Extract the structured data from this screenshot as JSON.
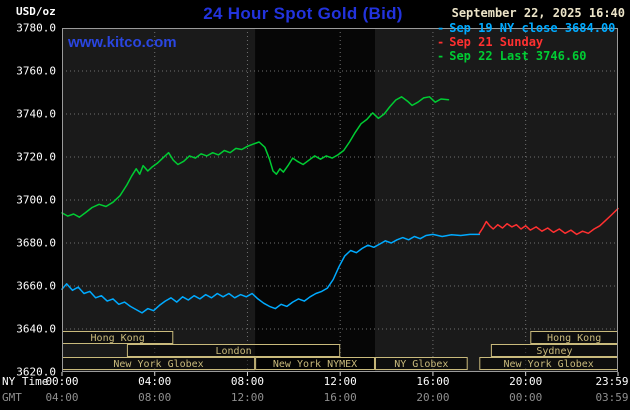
{
  "header": {
    "units": "USD/oz",
    "title": "24 Hour Spot Gold (Bid)",
    "datetime": "September 22, 2025 16:40",
    "watermark": "www.kitco.com"
  },
  "legend": [
    {
      "dash": "-",
      "label": "Sep 19 NY close 3684.00",
      "color": "#00aaff"
    },
    {
      "dash": "-",
      "label": "Sep 21 Sunday",
      "color": "#ff3030"
    },
    {
      "dash": "-",
      "label": "Sep 22 Last 3746.60",
      "color": "#00cc33"
    }
  ],
  "axes": {
    "ny_label": "NY Time",
    "gmt_label": "GMT",
    "x_ticks": [
      {
        "hour": 0,
        "ny": "00:00",
        "gmt": "04:00"
      },
      {
        "hour": 4,
        "ny": "04:00",
        "gmt": "08:00"
      },
      {
        "hour": 8,
        "ny": "08:00",
        "gmt": "12:00"
      },
      {
        "hour": 12,
        "ny": "12:00",
        "gmt": "16:00"
      },
      {
        "hour": 16,
        "ny": "16:00",
        "gmt": "20:00"
      },
      {
        "hour": 20,
        "ny": "20:00",
        "gmt": "00:00"
      },
      {
        "hour": 23.983,
        "ny": "23:59",
        "gmt": "03:59"
      }
    ],
    "y_ticks": [
      {
        "value": 3780,
        "label": "3780.0"
      },
      {
        "value": 3760,
        "label": "3760.0"
      },
      {
        "value": 3740,
        "label": "3740.0"
      },
      {
        "value": 3720,
        "label": "3720.0"
      },
      {
        "value": 3700,
        "label": "3700.0"
      },
      {
        "value": 3680,
        "label": "3680.0"
      },
      {
        "value": 3660,
        "label": "3660.0"
      },
      {
        "value": 3640,
        "label": "3640.0"
      },
      {
        "value": 3620,
        "label": "3620.0"
      }
    ]
  },
  "plot": {
    "bg": "#1a1a1a",
    "band": {
      "start_hour": 8.33,
      "end_hour": 13.5,
      "color": "#060606"
    },
    "grid_color": "#707070",
    "border_color": "#9a9a9a",
    "tick_color": "#dddddd",
    "session_color": "#c9ba7c",
    "sessions": [
      {
        "label": "Hong Kong",
        "row": 0,
        "start": 0,
        "end": 4.8
      },
      {
        "label": "Hong Kong",
        "row": 0,
        "start": 20.2,
        "end": 23.983
      },
      {
        "label": "London",
        "row": 1,
        "start": 2.8,
        "end": 12.0
      },
      {
        "label": "Sydney",
        "row": 1,
        "start": 18.5,
        "end": 23.983
      },
      {
        "label": "New York Globex",
        "row": 2,
        "start": 0,
        "end": 8.33
      },
      {
        "label": "New York NYMEX",
        "row": 2,
        "start": 8.33,
        "end": 13.5
      },
      {
        "label": "NY Globex",
        "row": 2,
        "start": 13.5,
        "end": 17.5
      },
      {
        "label": "New York Globex",
        "row": 2,
        "start": 18.0,
        "end": 23.983
      }
    ]
  },
  "chart_data": {
    "type": "line",
    "title": "24 Hour Spot Gold (Bid)",
    "ylabel": "USD/oz",
    "ylim": [
      3620,
      3780
    ],
    "xlim_hours": [
      0,
      23.983
    ],
    "x_axis": "NY time (hours, 00:00-23:59)",
    "legend_position": "top-right",
    "grid": true,
    "series": [
      {
        "name": "Sep 19 NY close",
        "color": "#00aaff",
        "close": 3684.0,
        "points": [
          [
            0,
            3658.5
          ],
          [
            0.2,
            3661
          ],
          [
            0.45,
            3658
          ],
          [
            0.7,
            3659.5
          ],
          [
            0.95,
            3656.5
          ],
          [
            1.2,
            3657.5
          ],
          [
            1.45,
            3654.5
          ],
          [
            1.7,
            3655.5
          ],
          [
            1.95,
            3653
          ],
          [
            2.2,
            3654
          ],
          [
            2.45,
            3651.5
          ],
          [
            2.7,
            3652.5
          ],
          [
            2.95,
            3650.5
          ],
          [
            3.2,
            3649
          ],
          [
            3.45,
            3647.5
          ],
          [
            3.7,
            3649.5
          ],
          [
            3.95,
            3648.5
          ],
          [
            4.2,
            3651
          ],
          [
            4.45,
            3653
          ],
          [
            4.7,
            3654.5
          ],
          [
            4.95,
            3652.5
          ],
          [
            5.2,
            3655
          ],
          [
            5.45,
            3653.5
          ],
          [
            5.7,
            3655.5
          ],
          [
            5.95,
            3654
          ],
          [
            6.2,
            3656
          ],
          [
            6.45,
            3654.5
          ],
          [
            6.7,
            3656.5
          ],
          [
            6.95,
            3655
          ],
          [
            7.2,
            3656.5
          ],
          [
            7.45,
            3654.5
          ],
          [
            7.7,
            3656
          ],
          [
            7.95,
            3655
          ],
          [
            8.2,
            3656.5
          ],
          [
            8.45,
            3654
          ],
          [
            8.7,
            3652
          ],
          [
            8.95,
            3650.5
          ],
          [
            9.2,
            3649.5
          ],
          [
            9.45,
            3651.5
          ],
          [
            9.7,
            3650.5
          ],
          [
            9.95,
            3652.5
          ],
          [
            10.2,
            3654
          ],
          [
            10.45,
            3653
          ],
          [
            10.7,
            3655
          ],
          [
            10.95,
            3656.5
          ],
          [
            11.2,
            3657.5
          ],
          [
            11.45,
            3659
          ],
          [
            11.7,
            3663
          ],
          [
            11.95,
            3669
          ],
          [
            12.2,
            3674
          ],
          [
            12.45,
            3676.5
          ],
          [
            12.7,
            3675.5
          ],
          [
            12.95,
            3677.5
          ],
          [
            13.2,
            3679
          ],
          [
            13.45,
            3678
          ],
          [
            13.7,
            3679.5
          ],
          [
            13.95,
            3681
          ],
          [
            14.2,
            3680
          ],
          [
            14.45,
            3681.5
          ],
          [
            14.7,
            3682.5
          ],
          [
            14.95,
            3681.5
          ],
          [
            15.2,
            3683
          ],
          [
            15.45,
            3682
          ],
          [
            15.7,
            3683.5
          ],
          [
            16,
            3684
          ],
          [
            16.4,
            3683
          ],
          [
            16.8,
            3683.8
          ],
          [
            17.2,
            3683.5
          ],
          [
            17.6,
            3684
          ],
          [
            18,
            3684
          ]
        ]
      },
      {
        "name": "Sep 21 Sunday",
        "color": "#ff3030",
        "points": [
          [
            18,
            3684.5
          ],
          [
            18.15,
            3687
          ],
          [
            18.3,
            3690
          ],
          [
            18.45,
            3688
          ],
          [
            18.6,
            3686.5
          ],
          [
            18.8,
            3688.5
          ],
          [
            19,
            3687
          ],
          [
            19.2,
            3689
          ],
          [
            19.4,
            3687.5
          ],
          [
            19.6,
            3688.5
          ],
          [
            19.8,
            3686.5
          ],
          [
            20,
            3688
          ],
          [
            20.2,
            3686
          ],
          [
            20.45,
            3687.5
          ],
          [
            20.7,
            3685.5
          ],
          [
            20.95,
            3687
          ],
          [
            21.2,
            3685
          ],
          [
            21.45,
            3686.5
          ],
          [
            21.7,
            3684.5
          ],
          [
            21.95,
            3686
          ],
          [
            22.2,
            3684
          ],
          [
            22.45,
            3685.5
          ],
          [
            22.7,
            3684.5
          ],
          [
            22.95,
            3686.5
          ],
          [
            23.2,
            3688
          ],
          [
            23.45,
            3690.5
          ],
          [
            23.7,
            3693
          ],
          [
            23.983,
            3696
          ]
        ]
      },
      {
        "name": "Sep 22 Last",
        "color": "#00cc33",
        "last": 3746.6,
        "points": [
          [
            0,
            3694
          ],
          [
            0.25,
            3692.5
          ],
          [
            0.5,
            3693.5
          ],
          [
            0.75,
            3692
          ],
          [
            1,
            3694
          ],
          [
            1.3,
            3696.5
          ],
          [
            1.6,
            3698
          ],
          [
            1.9,
            3697
          ],
          [
            2.2,
            3699
          ],
          [
            2.5,
            3702
          ],
          [
            2.8,
            3707
          ],
          [
            3,
            3711
          ],
          [
            3.2,
            3714.5
          ],
          [
            3.35,
            3712
          ],
          [
            3.5,
            3716
          ],
          [
            3.7,
            3713.5
          ],
          [
            3.9,
            3715.5
          ],
          [
            4.1,
            3717
          ],
          [
            4.35,
            3719.5
          ],
          [
            4.6,
            3722
          ],
          [
            4.8,
            3718.5
          ],
          [
            5,
            3716.5
          ],
          [
            5.25,
            3718
          ],
          [
            5.5,
            3720.5
          ],
          [
            5.75,
            3719.5
          ],
          [
            6,
            3721.5
          ],
          [
            6.25,
            3720.5
          ],
          [
            6.5,
            3722
          ],
          [
            6.75,
            3721
          ],
          [
            7,
            3723
          ],
          [
            7.25,
            3722
          ],
          [
            7.5,
            3724
          ],
          [
            7.75,
            3723.5
          ],
          [
            8,
            3725
          ],
          [
            8.25,
            3726
          ],
          [
            8.5,
            3727
          ],
          [
            8.75,
            3724.5
          ],
          [
            8.95,
            3719
          ],
          [
            9.1,
            3713.5
          ],
          [
            9.25,
            3712
          ],
          [
            9.4,
            3714.5
          ],
          [
            9.55,
            3713
          ],
          [
            9.75,
            3716
          ],
          [
            9.95,
            3719.5
          ],
          [
            10.15,
            3718
          ],
          [
            10.4,
            3716.5
          ],
          [
            10.65,
            3718.5
          ],
          [
            10.9,
            3720.5
          ],
          [
            11.15,
            3719
          ],
          [
            11.4,
            3720.5
          ],
          [
            11.65,
            3719.5
          ],
          [
            11.9,
            3721
          ],
          [
            12.15,
            3723
          ],
          [
            12.4,
            3727
          ],
          [
            12.65,
            3731.5
          ],
          [
            12.9,
            3735.5
          ],
          [
            13.15,
            3737.5
          ],
          [
            13.4,
            3740.5
          ],
          [
            13.65,
            3738
          ],
          [
            13.9,
            3740
          ],
          [
            14.15,
            3743.5
          ],
          [
            14.4,
            3746.5
          ],
          [
            14.65,
            3748
          ],
          [
            14.9,
            3746
          ],
          [
            15.1,
            3744
          ],
          [
            15.35,
            3745.5
          ],
          [
            15.6,
            3747.5
          ],
          [
            15.85,
            3748
          ],
          [
            16.1,
            3745.5
          ],
          [
            16.35,
            3747
          ],
          [
            16.67,
            3746.6
          ]
        ]
      }
    ]
  }
}
